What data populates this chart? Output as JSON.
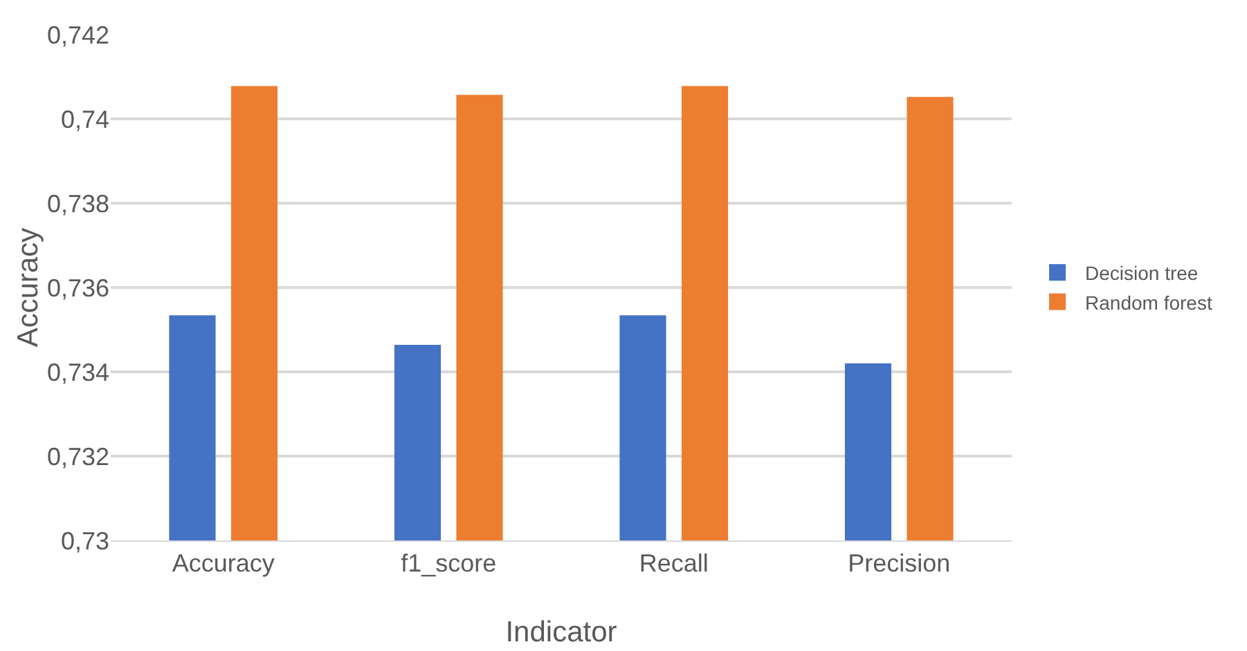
{
  "chart_data": {
    "type": "bar",
    "xlabel": "Indicator",
    "ylabel": "Accuracy",
    "categories": [
      "Accuracy",
      "f1_score",
      "Recall",
      "Precision"
    ],
    "series": [
      {
        "name": "Decision tree",
        "color": "#4472c4",
        "values": [
          0.73534,
          0.73464,
          0.73534,
          0.7342
        ]
      },
      {
        "name": "Random forest",
        "color": "#ed7d31",
        "values": [
          0.74078,
          0.74057,
          0.74078,
          0.74052
        ]
      }
    ],
    "ylim": [
      0.73,
      0.742
    ],
    "yticks": [
      {
        "value": 0.73,
        "label": "0,73"
      },
      {
        "value": 0.732,
        "label": "0,732"
      },
      {
        "value": 0.734,
        "label": "0,734"
      },
      {
        "value": 0.736,
        "label": "0,736"
      },
      {
        "value": 0.738,
        "label": "0,738"
      },
      {
        "value": 0.74,
        "label": "0,74"
      },
      {
        "value": 0.742,
        "label": "0,742"
      }
    ],
    "grid": "y",
    "legend": "right"
  }
}
